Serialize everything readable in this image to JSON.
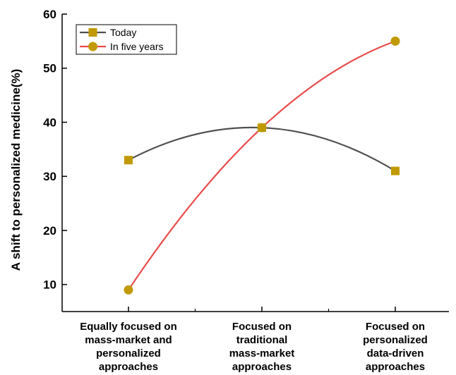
{
  "chart_data": {
    "type": "line",
    "categories": [
      [
        "Equally focused on",
        "mass-market and",
        "personalized",
        "approaches"
      ],
      [
        "Focused on",
        "traditional",
        "mass-market",
        "approaches"
      ],
      [
        "Focused on",
        "personalized",
        "data-driven",
        "approaches"
      ]
    ],
    "series": [
      {
        "name": "Today",
        "values": [
          33,
          39,
          31
        ],
        "color": "#505050",
        "marker": "square",
        "marker_color": "#c09a00"
      },
      {
        "name": "In five years",
        "values": [
          9,
          39,
          55
        ],
        "color": "#e84c4c",
        "marker": "circle",
        "marker_color": "#c09a00"
      }
    ],
    "title": "",
    "xlabel": "",
    "ylabel": "A shift to personalized medicine(%)",
    "ylim": [
      5,
      60
    ],
    "yticks": [
      10,
      20,
      30,
      40,
      50,
      60
    ],
    "legend_position": "top-left",
    "grid": false
  }
}
